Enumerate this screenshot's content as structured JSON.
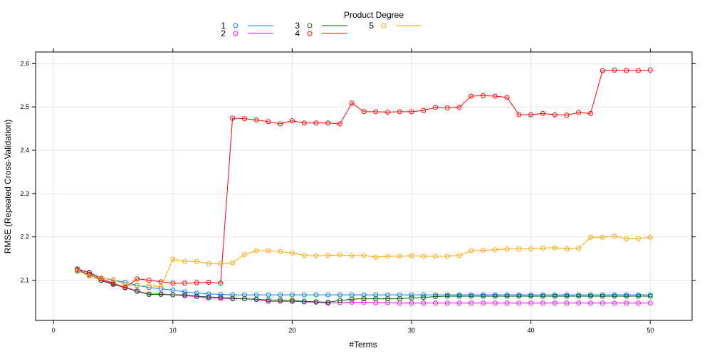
{
  "chart_data": {
    "type": "line",
    "title": "",
    "xlabel": "#Terms",
    "ylabel": "RMSE (Repeated Cross-Validation)",
    "legend_title": "Product Degree",
    "legend_position": "top",
    "grid": true,
    "xlim": [
      -1.5,
      53.5
    ],
    "ylim": [
      2.007,
      2.627
    ],
    "x_ticks": [
      0,
      10,
      20,
      30,
      40,
      50
    ],
    "y_ticks": [
      2.1,
      2.2,
      2.3,
      2.4,
      2.5,
      2.6
    ],
    "x_tick_labels": [
      "0",
      "10",
      "20",
      "30",
      "40",
      "50"
    ],
    "y_tick_labels": [
      "2.1",
      "2.2",
      "2.3",
      "2.4",
      "2.5",
      "2.6"
    ],
    "x": [
      2,
      3,
      4,
      5,
      6,
      7,
      8,
      9,
      10,
      11,
      12,
      13,
      14,
      15,
      16,
      17,
      18,
      19,
      20,
      21,
      22,
      23,
      24,
      25,
      26,
      27,
      28,
      29,
      30,
      31,
      32,
      33,
      34,
      35,
      36,
      37,
      38,
      39,
      40,
      41,
      42,
      43,
      44,
      45,
      46,
      47,
      48,
      49,
      50
    ],
    "series": [
      {
        "name": "1",
        "color": "#0080ff",
        "values": [
          2.126,
          2.118,
          2.105,
          2.1,
          2.095,
          2.088,
          2.083,
          2.08,
          2.077,
          2.073,
          2.07,
          2.068,
          2.067,
          2.066,
          2.066,
          2.066,
          2.066,
          2.066,
          2.066,
          2.066,
          2.066,
          2.066,
          2.066,
          2.066,
          2.066,
          2.066,
          2.066,
          2.066,
          2.066,
          2.066,
          2.066,
          2.066,
          2.066,
          2.066,
          2.066,
          2.066,
          2.066,
          2.066,
          2.066,
          2.066,
          2.066,
          2.066,
          2.066,
          2.066,
          2.066,
          2.066,
          2.066,
          2.066,
          2.066
        ]
      },
      {
        "name": "2",
        "color": "#ff00ff",
        "values": [
          2.124,
          2.112,
          2.1,
          2.092,
          2.084,
          2.075,
          2.068,
          2.068,
          2.066,
          2.064,
          2.062,
          2.059,
          2.058,
          2.057,
          2.057,
          2.055,
          2.051,
          2.051,
          2.051,
          2.05,
          2.049,
          2.047,
          2.048,
          2.049,
          2.049,
          2.048,
          2.048,
          2.047,
          2.047,
          2.047,
          2.047,
          2.047,
          2.047,
          2.047,
          2.047,
          2.047,
          2.047,
          2.047,
          2.047,
          2.047,
          2.047,
          2.047,
          2.047,
          2.047,
          2.047,
          2.047,
          2.047,
          2.047,
          2.047
        ]
      },
      {
        "name": "3",
        "color": "#006400",
        "values": [
          2.121,
          2.113,
          2.099,
          2.09,
          2.083,
          2.074,
          2.067,
          2.067,
          2.066,
          2.066,
          2.063,
          2.061,
          2.06,
          2.058,
          2.057,
          2.056,
          2.054,
          2.054,
          2.053,
          2.051,
          2.05,
          2.049,
          2.053,
          2.056,
          2.057,
          2.057,
          2.057,
          2.057,
          2.059,
          2.06,
          2.062,
          2.063,
          2.063,
          2.063,
          2.063,
          2.063,
          2.063,
          2.063,
          2.063,
          2.063,
          2.063,
          2.063,
          2.063,
          2.063,
          2.063,
          2.063,
          2.063,
          2.063,
          2.063
        ]
      },
      {
        "name": "4",
        "color": "#ff0000",
        "values": [
          2.125,
          2.117,
          2.103,
          2.093,
          2.082,
          2.103,
          2.1,
          2.096,
          2.093,
          2.093,
          2.094,
          2.095,
          2.093,
          2.474,
          2.473,
          2.47,
          2.466,
          2.461,
          2.468,
          2.463,
          2.463,
          2.463,
          2.461,
          2.509,
          2.489,
          2.489,
          2.488,
          2.489,
          2.489,
          2.492,
          2.499,
          2.498,
          2.499,
          2.525,
          2.526,
          2.525,
          2.522,
          2.482,
          2.482,
          2.485,
          2.482,
          2.481,
          2.487,
          2.485,
          2.584,
          2.585,
          2.584,
          2.584,
          2.585
        ]
      },
      {
        "name": "5",
        "color": "#ffa500",
        "values": [
          2.123,
          2.109,
          2.105,
          2.101,
          2.09,
          2.087,
          2.087,
          2.085,
          2.148,
          2.143,
          2.143,
          2.138,
          2.138,
          2.14,
          2.159,
          2.168,
          2.168,
          2.166,
          2.163,
          2.157,
          2.156,
          2.157,
          2.158,
          2.157,
          2.157,
          2.153,
          2.155,
          2.155,
          2.156,
          2.155,
          2.155,
          2.155,
          2.157,
          2.168,
          2.169,
          2.17,
          2.172,
          2.172,
          2.172,
          2.174,
          2.175,
          2.172,
          2.173,
          2.199,
          2.199,
          2.202,
          2.195,
          2.196,
          2.199
        ]
      }
    ]
  }
}
